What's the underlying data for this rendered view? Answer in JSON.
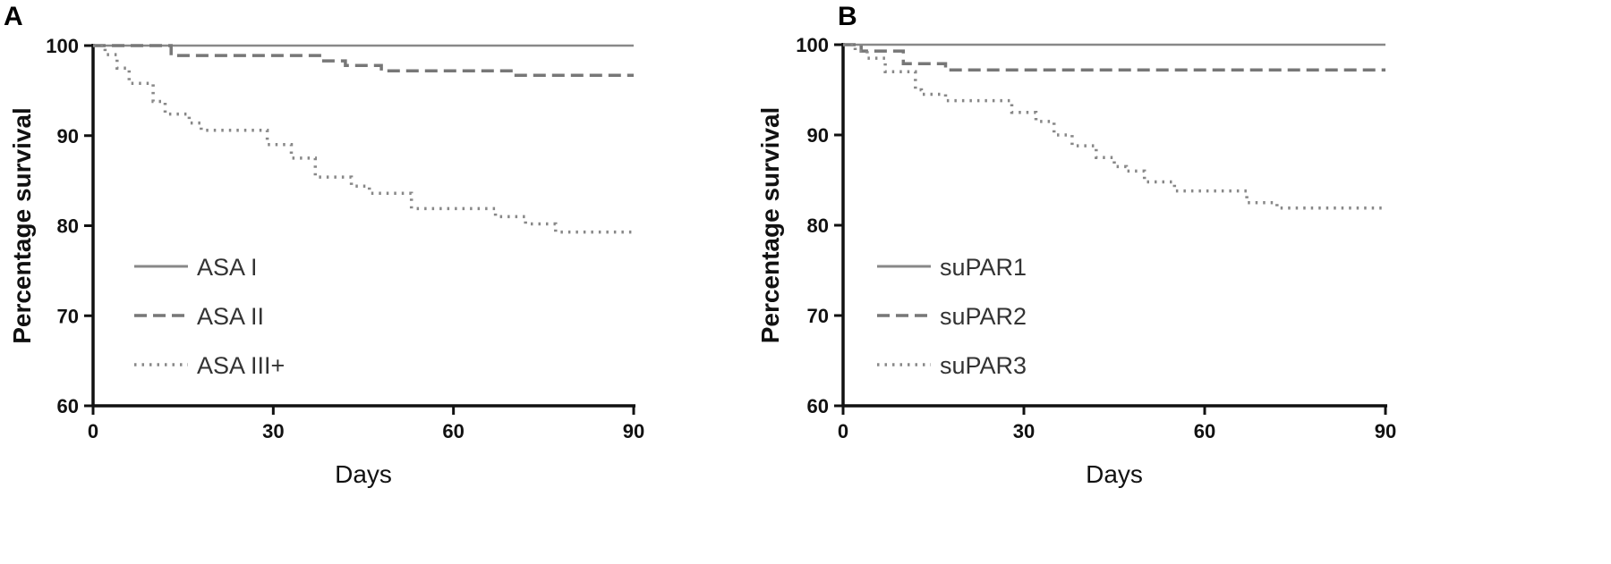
{
  "chart_data": [
    {
      "panel": "A",
      "type": "line",
      "xlabel": "Days",
      "ylabel": "Percentage survival",
      "xlim": [
        0,
        90
      ],
      "ylim": [
        60,
        100
      ],
      "xticks": [
        0,
        30,
        60,
        90
      ],
      "yticks": [
        60,
        70,
        80,
        90,
        100
      ],
      "legend_position": "left",
      "series": [
        {
          "name": "ASA I",
          "style": "solid",
          "color": "#888888",
          "x": [
            0,
            90
          ],
          "y": [
            100,
            100
          ]
        },
        {
          "name": "ASA II",
          "style": "dashed",
          "color": "#777777",
          "x": [
            0,
            13,
            13,
            38,
            38,
            42,
            42,
            48,
            48,
            70,
            70,
            90
          ],
          "y": [
            100,
            100,
            98.9,
            98.9,
            98.3,
            98.3,
            97.8,
            97.8,
            97.2,
            97.2,
            96.7,
            96.7
          ]
        },
        {
          "name": "ASA III+",
          "style": "dotted",
          "color": "#888888",
          "x": [
            0,
            2,
            2,
            4,
            4,
            6,
            6,
            10,
            10,
            12,
            12,
            16,
            16,
            18,
            18,
            29,
            29,
            33,
            33,
            37,
            37,
            43,
            43,
            46,
            46,
            53,
            53,
            67,
            67,
            72,
            72,
            77,
            77,
            90
          ],
          "y": [
            100,
            100,
            99,
            99,
            97.5,
            97.5,
            95.8,
            95.8,
            93.8,
            93.8,
            92.4,
            92.4,
            91.4,
            91.4,
            90.6,
            90.6,
            89.0,
            89.0,
            87.5,
            87.5,
            85.4,
            85.4,
            84.4,
            84.4,
            83.6,
            83.6,
            81.9,
            81.9,
            81.0,
            81.0,
            80.2,
            80.2,
            79.3,
            79.3
          ]
        }
      ]
    },
    {
      "panel": "B",
      "type": "line",
      "xlabel": "Days",
      "ylabel": "Percentage survival",
      "xlim": [
        0,
        90
      ],
      "ylim": [
        60,
        100
      ],
      "xticks": [
        0,
        30,
        60,
        90
      ],
      "yticks": [
        60,
        70,
        80,
        90,
        100
      ],
      "legend_position": "left",
      "series": [
        {
          "name": "suPAR1",
          "style": "solid",
          "color": "#888888",
          "x": [
            0,
            90
          ],
          "y": [
            100,
            100
          ]
        },
        {
          "name": "suPAR2",
          "style": "dashed",
          "color": "#777777",
          "x": [
            0,
            3,
            3,
            10,
            10,
            17,
            17,
            90
          ],
          "y": [
            100,
            100,
            99.3,
            99.3,
            97.9,
            97.9,
            97.2,
            97.2
          ]
        },
        {
          "name": "suPAR3",
          "style": "dotted",
          "color": "#888888",
          "x": [
            0,
            2,
            2,
            4,
            4,
            7,
            7,
            9,
            9,
            12,
            12,
            13,
            13,
            17,
            17,
            28,
            28,
            32,
            32,
            35,
            35,
            38,
            38,
            42,
            42,
            45,
            45,
            47,
            47,
            50,
            50,
            55,
            55,
            67,
            67,
            72,
            72,
            77,
            77,
            90
          ],
          "y": [
            100,
            100,
            99.3,
            99.3,
            98.5,
            98.5,
            97.0,
            97.0,
            97.0,
            97.0,
            95.0,
            95.0,
            94.5,
            94.5,
            93.8,
            93.8,
            92.5,
            92.5,
            91.5,
            91.5,
            90.0,
            90.0,
            88.8,
            88.8,
            87.5,
            87.5,
            86.5,
            86.5,
            86.0,
            86.0,
            84.8,
            84.8,
            83.8,
            83.8,
            82.5,
            82.5,
            81.9,
            81.9,
            81.9,
            81.9
          ]
        }
      ]
    }
  ]
}
